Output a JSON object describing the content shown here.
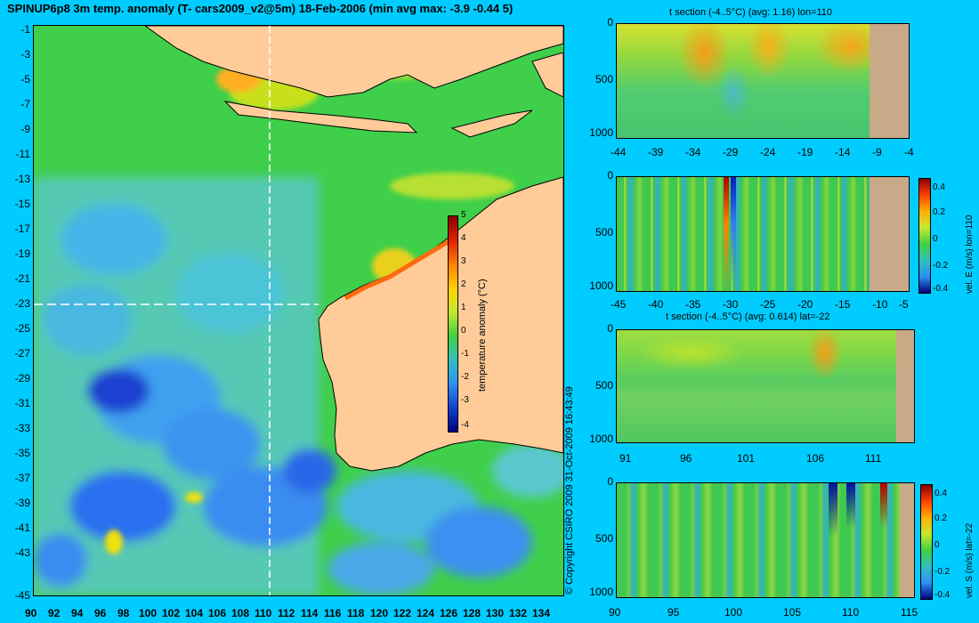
{
  "header": {
    "title": "SPINUP6p8 3m temp. anomaly (T- cars2009_v2@5m) 18-Feb-2006 (min avg max: -3.9 -0.44 5)"
  },
  "map": {
    "lat_ticks": [
      "-1",
      "-3",
      "-5",
      "-7",
      "-9",
      "-11",
      "-13",
      "-15",
      "-17",
      "-19",
      "-21",
      "-23",
      "-25",
      "-27",
      "-29",
      "-31",
      "-33",
      "-35",
      "-37",
      "-39",
      "-41",
      "-43",
      "-45"
    ],
    "lon_ticks": [
      "90",
      "92",
      "94",
      "96",
      "98",
      "100",
      "102",
      "104",
      "106",
      "108",
      "110",
      "112",
      "114",
      "116",
      "118",
      "120",
      "122",
      "124",
      "126",
      "128",
      "130",
      "132",
      "134"
    ],
    "section_lon": 110,
    "section_lat": -22,
    "colors": {
      "ocean": "#3fcf4a",
      "land": "#ffcc99",
      "cold": "#1e6fff",
      "warm": "#ff9a1a"
    }
  },
  "colorbar": {
    "label": "temperature anomaly (°C)",
    "ticks": [
      "5",
      "4",
      "3",
      "2",
      "1",
      "0",
      "-1",
      "-2",
      "-3",
      "-4"
    ]
  },
  "copyright": "© Copyright CSIRO 2009   31-Oct-2009 16:43:49",
  "panels": {
    "p1": {
      "title": "t section (-4..5°C) (avg: 1.16) lon=110",
      "x_ticks": [
        "-44",
        "-39",
        "-34",
        "-29",
        "-24",
        "-19",
        "-14",
        "-9",
        "-4"
      ],
      "y_ticks": [
        "0",
        "500",
        "1000"
      ]
    },
    "p2": {
      "x_ticks": [
        "-45",
        "-40",
        "-35",
        "-30",
        "-25",
        "-20",
        "-15",
        "-10",
        "-5"
      ],
      "y_ticks": [
        "0",
        "500",
        "1000"
      ],
      "cb_label": "vel. E (m/s) lon=110",
      "cb_ticks": [
        "0.4",
        "0.2",
        "0",
        "-0.2",
        "-0.4"
      ]
    },
    "p3": {
      "title": "t section (-4..5°C) (avg: 0.614) lat=-22",
      "x_ticks": [
        "91",
        "96",
        "101",
        "106",
        "111"
      ],
      "y_ticks": [
        "0",
        "500",
        "1000"
      ]
    },
    "p4": {
      "x_ticks": [
        "90",
        "95",
        "100",
        "105",
        "110",
        "115"
      ],
      "y_ticks": [
        "0",
        "500",
        "1000"
      ],
      "cb_label": "vel. S (m/s) lat=-22",
      "cb_ticks": [
        "0.4",
        "0.2",
        "0",
        "-0.2",
        "-0.4"
      ]
    }
  }
}
